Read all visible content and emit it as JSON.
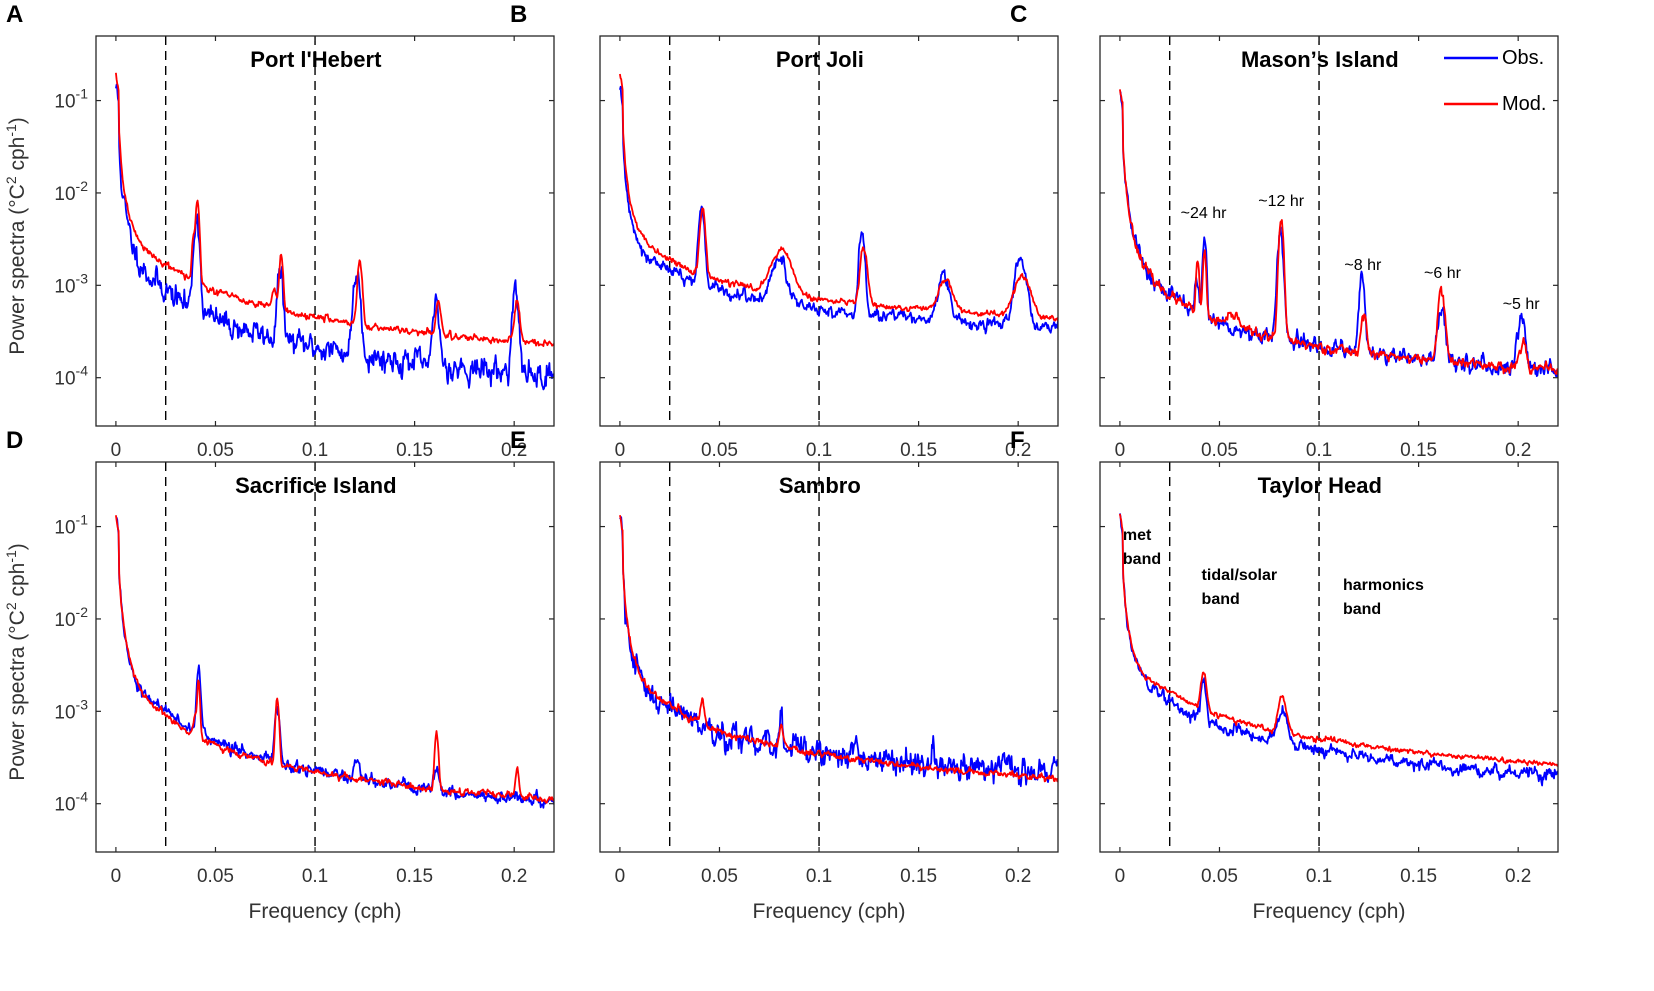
{
  "chart_data": {
    "type": "line",
    "xlabel": "Frequency (cph)",
    "ylabel": "Power spectra (°C² cph⁻¹)",
    "ylabel_parts": {
      "pre": "Power spectra (°C",
      "sup1": "2",
      "mid": " cph",
      "sup2": "-1",
      "post": ")"
    },
    "xlim": [
      -0.01,
      0.22
    ],
    "ylim": [
      3e-05,
      0.5
    ],
    "yscale": "log",
    "x_ticks": [
      0,
      0.05,
      0.1,
      0.15,
      0.2
    ],
    "x_tick_labels": [
      "0",
      "0.05",
      "0.1",
      "0.15",
      "0.2"
    ],
    "y_ticks": [
      0.0001,
      0.001,
      0.01,
      0.1
    ],
    "y_tick_labels": [
      {
        "base": "10",
        "exp": "-4"
      },
      {
        "base": "10",
        "exp": "-3"
      },
      {
        "base": "10",
        "exp": "-2"
      },
      {
        "base": "10",
        "exp": "-1"
      }
    ],
    "band_boundaries": [
      0.025,
      0.1
    ],
    "colors": {
      "obs": "#0000ff",
      "mod": "#ff0000",
      "dash": "#000000"
    },
    "legend": {
      "panel": "C",
      "location": "top-right",
      "entries": [
        {
          "name": "Obs.",
          "color": "#0000ff"
        },
        {
          "name": "Mod.",
          "color": "#ff0000"
        }
      ]
    },
    "panels": [
      {
        "letter": "A",
        "title": "Port l'Hebert",
        "obs": {
          "low": 0.0052,
          "bg": 0.00052,
          "bgfall": 0.8,
          "peaks": [
            [
              0.0405,
              0.005,
              0.0012
            ],
            [
              0.0825,
              0.0011,
              0.0012
            ],
            [
              0.121,
              0.0012,
              0.0015
            ],
            [
              0.161,
              0.00055,
              0.0012
            ],
            [
              0.2005,
              0.00075,
              0.0013
            ]
          ],
          "noise": 0.3,
          "seed": 11
        },
        "mod": {
          "low": 0.0072,
          "bg": 0.0012,
          "bgfall": 0.8,
          "peaks": [
            [
              0.039,
              0.002,
              0.0008
            ],
            [
              0.041,
              0.0072,
              0.0008
            ],
            [
              0.0795,
              0.0003,
              0.0012
            ],
            [
              0.083,
              0.0016,
              0.0008
            ],
            [
              0.1225,
              0.0014,
              0.001
            ],
            [
              0.162,
              0.0004,
              0.001
            ],
            [
              0.2015,
              0.0004,
              0.0012
            ]
          ],
          "noise": 0.08,
          "seed": 21
        }
      },
      {
        "letter": "B",
        "title": "Port Joli",
        "obs": {
          "low": 0.0052,
          "bg": 0.0011,
          "bgfall": 0.55,
          "peaks": [
            [
              0.041,
              0.0062,
              0.0012
            ],
            [
              0.08,
              0.0012,
              0.0035
            ],
            [
              0.1215,
              0.0032,
              0.0012
            ],
            [
              0.1625,
              0.0009,
              0.0025
            ],
            [
              0.201,
              0.0016,
              0.0025
            ]
          ],
          "noise": 0.15,
          "seed": 12
        },
        "mod": {
          "low": 0.0072,
          "bg": 0.0014,
          "bgfall": 0.55,
          "peaks": [
            [
              0.0415,
              0.005,
              0.0012
            ],
            [
              0.081,
              0.0016,
              0.0045
            ],
            [
              0.1225,
              0.0019,
              0.0015
            ],
            [
              0.1635,
              0.0006,
              0.003
            ],
            [
              0.202,
              0.0008,
              0.0035
            ]
          ],
          "noise": 0.07,
          "seed": 22
        }
      },
      {
        "letter": "C",
        "title": "Masonʼs Island",
        "obs": {
          "low": 0.0052,
          "bg": 0.0004,
          "bgfall": 0.6,
          "peaks": [
            [
              0.0385,
              0.0006,
              0.0008
            ],
            [
              0.0425,
              0.0028,
              0.0008
            ],
            [
              0.0805,
              0.0035,
              0.0012
            ],
            [
              0.1215,
              0.0011,
              0.0012
            ],
            [
              0.1615,
              0.00045,
              0.0015
            ],
            [
              0.2015,
              0.00036,
              0.0015
            ]
          ],
          "noise": 0.2,
          "seed": 13
        },
        "mod": {
          "low": 0.0052,
          "bg": 0.0004,
          "bgfall": 0.6,
          "peaks": [
            [
              0.039,
              0.0012,
              0.0007
            ],
            [
              0.0425,
              0.0018,
              0.0007
            ],
            [
              0.058,
              0.00012,
              0.003
            ],
            [
              0.081,
              0.0048,
              0.001
            ],
            [
              0.1225,
              0.0003,
              0.0012
            ],
            [
              0.1615,
              0.0007,
              0.0015
            ],
            [
              0.2025,
              0.00012,
              0.0015
            ]
          ],
          "noise": 0.12,
          "seed": 23
        }
      },
      {
        "letter": "D",
        "title": "Sacrifice Island",
        "obs": {
          "low": 0.0052,
          "bg": 0.00065,
          "bgfall": 0.9,
          "peaks": [
            [
              0.0415,
              0.0026,
              0.0008
            ],
            [
              0.081,
              0.0008,
              0.001
            ],
            [
              0.121,
              0.0001,
              0.0012
            ],
            [
              0.161,
              0.0001,
              0.001
            ]
          ],
          "noise": 0.15,
          "seed": 14
        },
        "mod": {
          "low": 0.0052,
          "bg": 0.0005,
          "bgfall": 0.75,
          "peaks": [
            [
              0.0395,
              0.0004,
              0.0006
            ],
            [
              0.0415,
              0.0017,
              0.0006
            ],
            [
              0.081,
              0.0011,
              0.0008
            ],
            [
              0.161,
              0.00042,
              0.0008
            ],
            [
              0.2015,
              0.00012,
              0.0008
            ]
          ],
          "noise": 0.08,
          "seed": 24
        }
      },
      {
        "letter": "E",
        "title": "Sambro",
        "obs": {
          "low": 0.0052,
          "bg": 0.00075,
          "bgfall": 0.6,
          "peaks": [
            [
              0.081,
              0.0005,
              0.0008
            ]
          ],
          "noise": 0.32,
          "seed": 15
        },
        "mod": {
          "low": 0.0052,
          "bg": 0.0008,
          "bgfall": 0.7,
          "peaks": [
            [
              0.0415,
              0.0006,
              0.0008
            ],
            [
              0.081,
              0.0003,
              0.0008
            ]
          ],
          "noise": 0.08,
          "seed": 25
        }
      },
      {
        "letter": "F",
        "title": "Taylor Head",
        "obs": {
          "low": 0.0052,
          "bg": 0.00095,
          "bgfall": 0.75,
          "peaks": [
            [
              0.042,
              0.0012,
              0.0012
            ],
            [
              0.0815,
              0.0006,
              0.002
            ]
          ],
          "noise": 0.15,
          "seed": 16
        },
        "mod": {
          "low": 0.0052,
          "bg": 0.0013,
          "bgfall": 0.75,
          "peaks": [
            [
              0.042,
              0.0016,
              0.0012
            ],
            [
              0.0815,
              0.0009,
              0.0018
            ]
          ],
          "noise": 0.06,
          "seed": 26
        }
      }
    ],
    "annotations": {
      "C": [
        "~24 hr",
        "~12 hr",
        "~8 hr",
        "~6 hr",
        "~5 hr"
      ],
      "F": [
        "met",
        "band",
        "tidal/solar",
        "band",
        "harmonics",
        "band"
      ]
    }
  }
}
